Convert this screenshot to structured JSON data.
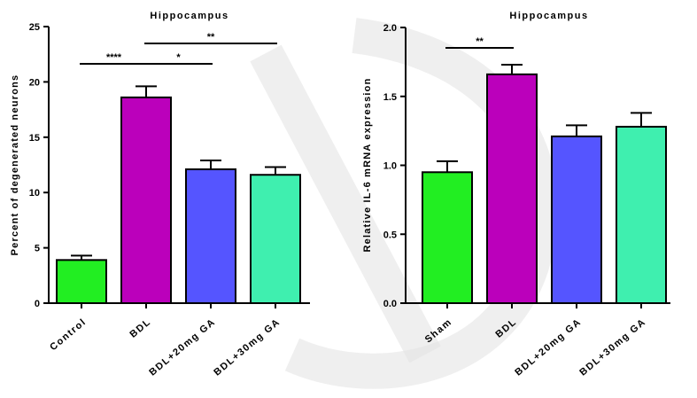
{
  "chart_data": [
    {
      "type": "bar",
      "title": "Hippocampus",
      "ylabel": "Percent of degenerated neurons",
      "xlabel": "",
      "ylim": [
        0,
        25
      ],
      "yticks": [
        "0",
        "5",
        "10",
        "15",
        "20",
        "25"
      ],
      "categories": [
        "Control",
        "BDL",
        "BDL+20mg GA",
        "BDL+30mg GA"
      ],
      "values": [
        3.9,
        18.6,
        12.1,
        11.6
      ],
      "errors": [
        0.4,
        1.0,
        0.8,
        0.7
      ],
      "colors": [
        "#22ee22",
        "#bb00bb",
        "#5555ff",
        "#3fefaf"
      ],
      "significance": [
        {
          "from": 0,
          "to": 1,
          "label": "****"
        },
        {
          "from": 1,
          "to": 2,
          "label": "*"
        },
        {
          "from": 1,
          "to": 3,
          "label": "**"
        }
      ],
      "grid": false
    },
    {
      "type": "bar",
      "title": "Hippocampus",
      "ylabel": "Relative IL-6 mRNA expression",
      "xlabel": "",
      "ylim": [
        0,
        2.0
      ],
      "yticks": [
        "0.0",
        "0.5",
        "1.0",
        "1.5",
        "2.0"
      ],
      "categories": [
        "Sham",
        "BDL",
        "BDL+20mg GA",
        "BDL+30mg GA"
      ],
      "values": [
        0.95,
        1.66,
        1.21,
        1.28
      ],
      "errors": [
        0.08,
        0.07,
        0.08,
        0.1
      ],
      "colors": [
        "#22ee22",
        "#bb00bb",
        "#5555ff",
        "#3fefaf"
      ],
      "significance": [
        {
          "from": 0,
          "to": 1,
          "label": "**"
        }
      ],
      "grid": false
    }
  ]
}
